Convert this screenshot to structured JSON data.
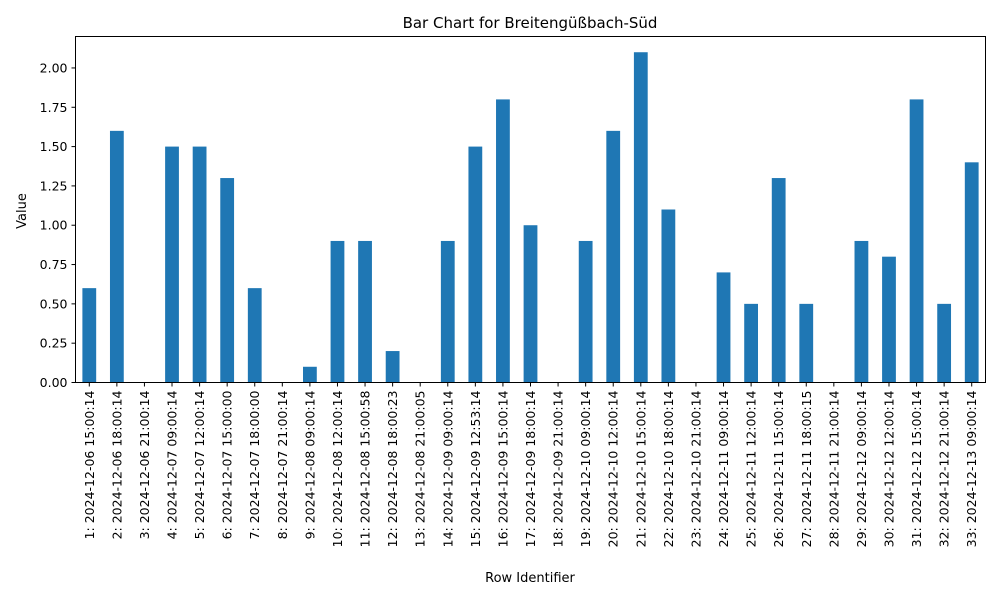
{
  "chart_data": {
    "type": "bar",
    "title": "Bar Chart for Breitengüßbach-Süd",
    "xlabel": "Row Identifier",
    "ylabel": "Value",
    "ylim": [
      0,
      2.2
    ],
    "yticks": [
      "0.00",
      "0.25",
      "0.50",
      "0.75",
      "1.00",
      "1.25",
      "1.50",
      "1.75",
      "2.00"
    ],
    "ytick_values": [
      0,
      0.25,
      0.5,
      0.75,
      1.0,
      1.25,
      1.5,
      1.75,
      2.0
    ],
    "grid": false,
    "color": "#1f77b4",
    "categories": [
      "1: 2024-12-06 15:00:14",
      "2: 2024-12-06 18:00:14",
      "3: 2024-12-06 21:00:14",
      "4: 2024-12-07 09:00:14",
      "5: 2024-12-07 12:00:14",
      "6: 2024-12-07 15:00:00",
      "7: 2024-12-07 18:00:00",
      "8: 2024-12-07 21:00:14",
      "9: 2024-12-08 09:00:14",
      "10: 2024-12-08 12:00:14",
      "11: 2024-12-08 15:00:58",
      "12: 2024-12-08 18:00:23",
      "13: 2024-12-08 21:00:05",
      "14: 2024-12-09 09:00:14",
      "15: 2024-12-09 12:53:14",
      "16: 2024-12-09 15:00:14",
      "17: 2024-12-09 18:00:14",
      "18: 2024-12-09 21:00:14",
      "19: 2024-12-10 09:00:14",
      "20: 2024-12-10 12:00:14",
      "21: 2024-12-10 15:00:14",
      "22: 2024-12-10 18:00:14",
      "23: 2024-12-10 21:00:14",
      "24: 2024-12-11 09:00:14",
      "25: 2024-12-11 12:00:14",
      "26: 2024-12-11 15:00:14",
      "27: 2024-12-11 18:00:15",
      "28: 2024-12-11 21:00:14",
      "29: 2024-12-12 09:00:14",
      "30: 2024-12-12 12:00:14",
      "31: 2024-12-12 15:00:14",
      "32: 2024-12-12 21:00:14",
      "33: 2024-12-13 09:00:14"
    ],
    "values": [
      0.6,
      1.6,
      0.0,
      1.5,
      1.5,
      1.3,
      0.6,
      0.0,
      0.1,
      0.9,
      0.9,
      0.2,
      0.0,
      0.9,
      1.5,
      1.8,
      1.0,
      0.0,
      0.9,
      1.6,
      2.1,
      1.1,
      0.0,
      0.7,
      0.5,
      1.3,
      0.5,
      0.0,
      0.9,
      0.8,
      1.8,
      0.5,
      1.4
    ]
  }
}
